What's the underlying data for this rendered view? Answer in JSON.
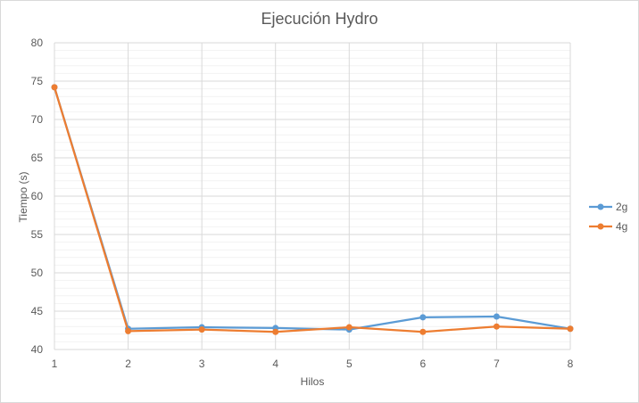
{
  "chart_data": {
    "type": "line",
    "title": "Ejecución Hydro",
    "xlabel": "Hilos",
    "ylabel": "Tiempo (s)",
    "x": [
      1,
      2,
      3,
      4,
      5,
      6,
      7,
      8
    ],
    "xlim": [
      1,
      8
    ],
    "ylim": [
      40,
      80
    ],
    "y_major_ticks": [
      40,
      45,
      50,
      55,
      60,
      65,
      70,
      75,
      80
    ],
    "y_minor_step": 1,
    "grid": true,
    "legend_position": "right",
    "series": [
      {
        "name": "2g",
        "color": "#5b9bd5",
        "values": [
          74.2,
          42.7,
          42.9,
          42.8,
          42.6,
          44.2,
          44.3,
          42.7
        ]
      },
      {
        "name": "4g",
        "color": "#ed7d31",
        "values": [
          74.2,
          42.4,
          42.6,
          42.3,
          42.9,
          42.3,
          43.0,
          42.7
        ]
      }
    ]
  }
}
